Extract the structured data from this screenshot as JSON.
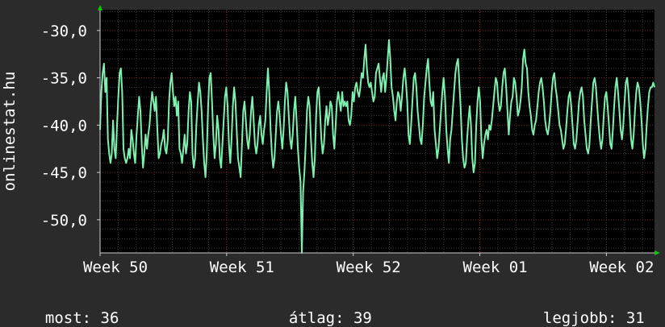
{
  "chart_data": {
    "type": "line",
    "ylabel": "onlinestat.hu",
    "ylim": [
      -53.5,
      -27.8
    ],
    "yticks": [
      -30,
      -35,
      -40,
      -45,
      -50
    ],
    "ytick_labels": [
      "-30,0",
      "-35,0",
      "-40,0",
      "-45,0",
      "-50,0"
    ],
    "xlim": [
      0,
      4.38
    ],
    "xticks": [
      0,
      1,
      2,
      3,
      4
    ],
    "xtick_labels": [
      "Week 50",
      "Week 51",
      "Week 52",
      "Week 01",
      "Week 02"
    ],
    "grid": true,
    "colors": {
      "background": "#000000",
      "page": "#2b2b2b",
      "grid_major": "#7a2a2a",
      "grid_minor": "#3c3c3c",
      "line": "#7ef0b0",
      "arrow": "#00cc00"
    },
    "series": [
      {
        "values": [
          -40.5,
          -36.5,
          -34.5,
          -33.5,
          -36.5,
          -35.0,
          -41.5,
          -43.0,
          -44.0,
          -43.0,
          -39.5,
          -42.5,
          -43.5,
          -40.0,
          -37.0,
          -34.5,
          -34.0,
          -36.5,
          -42.5,
          -43.5,
          -44.0,
          -43.5,
          -42.5,
          -43.5,
          -40.5,
          -41.5,
          -43.0,
          -44.0,
          -41.0,
          -39.0,
          -37.0,
          -38.5,
          -42.0,
          -44.5,
          -43.0,
          -41.0,
          -42.5,
          -41.0,
          -40.0,
          -38.0,
          -36.5,
          -37.5,
          -38.5,
          -37.0,
          -40.5,
          -43.5,
          -43.0,
          -42.0,
          -41.5,
          -40.5,
          -42.5,
          -43.0,
          -41.5,
          -37.5,
          -35.5,
          -34.5,
          -36.5,
          -38.0,
          -37.0,
          -39.0,
          -37.5,
          -42.5,
          -43.0,
          -44.0,
          -42.5,
          -41.0,
          -43.0,
          -42.0,
          -38.5,
          -36.5,
          -37.5,
          -43.0,
          -44.5,
          -43.5,
          -40.0,
          -37.5,
          -35.5,
          -36.5,
          -38.5,
          -41.5,
          -44.0,
          -45.5,
          -43.0,
          -38.0,
          -35.0,
          -34.5,
          -37.5,
          -41.0,
          -43.5,
          -42.0,
          -39.0,
          -40.5,
          -43.5,
          -44.5,
          -42.0,
          -39.5,
          -37.0,
          -36.0,
          -38.0,
          -42.0,
          -44.0,
          -41.5,
          -38.0,
          -36.0,
          -37.5,
          -40.5,
          -43.5,
          -44.5,
          -45.5,
          -42.0,
          -38.5,
          -37.5,
          -39.5,
          -41.5,
          -42.5,
          -41.0,
          -38.5,
          -37.0,
          -39.5,
          -42.0,
          -43.0,
          -42.0,
          -40.0,
          -39.0,
          -41.0,
          -42.0,
          -40.5,
          -39.5,
          -36.5,
          -34.0,
          -36.5,
          -40.5,
          -43.0,
          -44.5,
          -43.5,
          -41.0,
          -38.5,
          -37.5,
          -39.0,
          -41.0,
          -42.5,
          -40.5,
          -37.5,
          -35.5,
          -36.5,
          -39.0,
          -41.5,
          -42.5,
          -41.0,
          -38.5,
          -37.0,
          -39.5,
          -42.5,
          -44.5,
          -46.0,
          -53.5,
          -47.0,
          -45.0,
          -42.0,
          -38.5,
          -37.0,
          -38.0,
          -41.5,
          -44.0,
          -45.5,
          -43.5,
          -39.0,
          -36.5,
          -36.0,
          -38.5,
          -41.5,
          -43.0,
          -42.0,
          -39.5,
          -38.0,
          -40.0,
          -39.0,
          -37.5,
          -38.0,
          -41.0,
          -42.5,
          -40.0,
          -37.5,
          -36.5,
          -37.5,
          -38.5,
          -36.5,
          -38.0,
          -37.5,
          -38.0,
          -37.5,
          -39.5,
          -40.0,
          -39.0,
          -36.5,
          -37.5,
          -36.0,
          -35.5,
          -36.5,
          -37.0,
          -36.0,
          -34.5,
          -35.0,
          -33.0,
          -31.5,
          -34.0,
          -35.5,
          -36.0,
          -35.5,
          -36.5,
          -37.5,
          -37.0,
          -34.5,
          -34.0,
          -33.5,
          -35.0,
          -36.5,
          -35.0,
          -34.5,
          -36.5,
          -35.0,
          -33.0,
          -31.0,
          -33.0,
          -36.0,
          -37.0,
          -38.5,
          -39.5,
          -37.5,
          -36.5,
          -37.0,
          -38.5,
          -37.0,
          -35.0,
          -34.0,
          -35.5,
          -37.5,
          -41.0,
          -42.0,
          -40.0,
          -37.5,
          -35.0,
          -34.5,
          -36.0,
          -38.5,
          -40.0,
          -41.5,
          -42.0,
          -40.0,
          -37.0,
          -35.5,
          -34.0,
          -33.0,
          -35.5,
          -37.5,
          -38.0,
          -36.5,
          -40.5,
          -42.0,
          -43.5,
          -42.5,
          -40.5,
          -38.5,
          -36.5,
          -35.0,
          -37.0,
          -40.5,
          -42.5,
          -44.0,
          -41.5,
          -40.5,
          -38.5,
          -36.5,
          -34.5,
          -33.5,
          -33.0,
          -35.5,
          -38.0,
          -41.5,
          -43.5,
          -44.5,
          -44.0,
          -41.5,
          -39.5,
          -38.0,
          -40.0,
          -43.5,
          -45.0,
          -44.0,
          -40.0,
          -37.5,
          -36.0,
          -37.5,
          -41.5,
          -43.5,
          -42.0,
          -41.0,
          -40.5,
          -41.5,
          -40.0,
          -40.5,
          -39.5,
          -38.0,
          -36.5,
          -35.0,
          -35.5,
          -37.5,
          -38.5,
          -38.0,
          -36.0,
          -34.5,
          -34.0,
          -36.0,
          -38.5,
          -41.0,
          -39.0,
          -37.5,
          -37.0,
          -35.0,
          -35.5,
          -37.0,
          -39.0,
          -38.5,
          -37.5,
          -36.0,
          -33.0,
          -32.0,
          -33.5,
          -34.0,
          -36.5,
          -38.0,
          -39.0,
          -40.5,
          -41.0,
          -40.0,
          -39.5,
          -38.0,
          -36.5,
          -35.5,
          -35.0,
          -36.0,
          -37.5,
          -39.5,
          -40.5,
          -41.0,
          -40.0,
          -38.5,
          -36.5,
          -35.0,
          -34.5,
          -36.0,
          -37.0,
          -38.5,
          -40.0,
          -40.5,
          -41.5,
          -42.5,
          -42.0,
          -40.5,
          -38.5,
          -37.0,
          -36.5,
          -38.0,
          -40.0,
          -42.0,
          -42.5,
          -41.5,
          -39.5,
          -37.5,
          -36.5,
          -36.0,
          -37.0,
          -39.5,
          -41.0,
          -42.5,
          -43.0,
          -42.0,
          -39.5,
          -37.5,
          -35.5,
          -35.0,
          -36.0,
          -38.0,
          -40.0,
          -41.5,
          -42.5,
          -41.5,
          -39.0,
          -37.0,
          -36.5,
          -38.0,
          -40.0,
          -42.0,
          -42.5,
          -40.5,
          -38.0,
          -36.0,
          -35.0,
          -36.5,
          -38.5,
          -40.5,
          -41.5,
          -40.0,
          -37.5,
          -35.5,
          -35.0,
          -36.5,
          -39.0,
          -41.5,
          -42.5,
          -41.0,
          -38.5,
          -36.5,
          -35.5,
          -36.0,
          -37.5,
          -39.5,
          -42.0,
          -43.5,
          -42.5,
          -40.0,
          -38.0,
          -36.5,
          -36.0,
          -36.0,
          -35.5,
          -36.0
        ]
      }
    ]
  },
  "footer": {
    "current_label": "most:",
    "current_value": "36",
    "average_label": "átlag:",
    "average_value": "39",
    "best_label": "legjobb:",
    "best_value": "31"
  }
}
